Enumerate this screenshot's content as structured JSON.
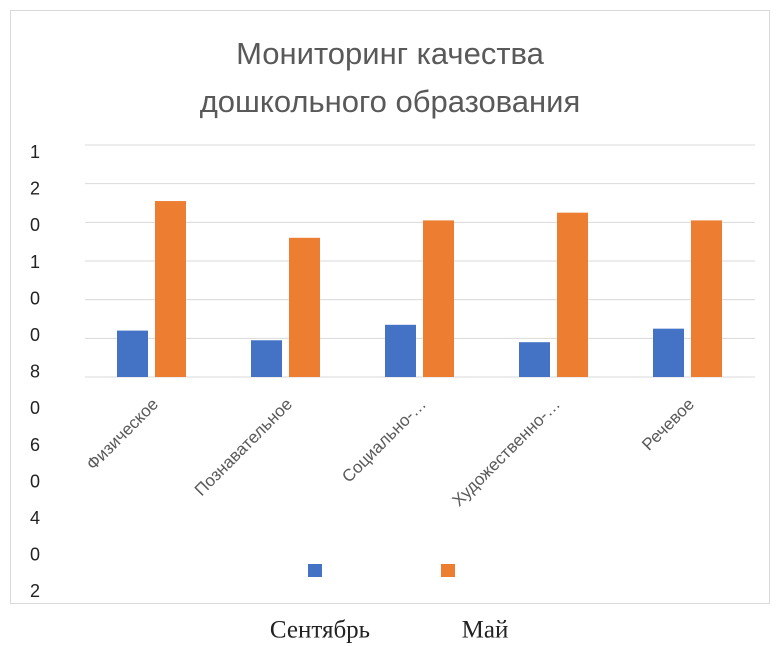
{
  "chart_data": {
    "type": "bar",
    "title": "Мониторинг качества дошкольного образования",
    "categories": [
      "Физическое",
      "Познавательное",
      "Социально-…",
      "Художественно-…",
      "Речевое"
    ],
    "series": [
      {
        "name": "Сентябрь",
        "color": "#4472c4",
        "values": [
          24,
          19,
          27,
          18,
          25
        ]
      },
      {
        "name": "Май",
        "color": "#ed7d31",
        "values": [
          91,
          72,
          81,
          85,
          81
        ]
      }
    ],
    "ylim": [
      0,
      120
    ],
    "yticks": [
      120,
      100,
      80,
      60,
      40,
      20
    ],
    "grid": true
  }
}
